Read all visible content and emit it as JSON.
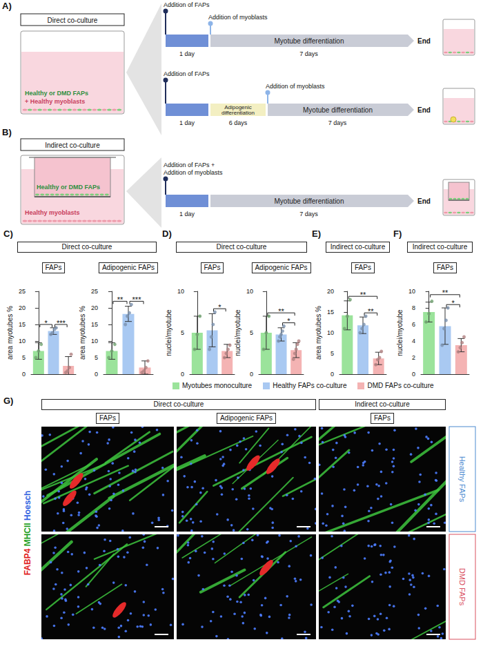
{
  "schematic": {
    "panels": [
      {
        "letter": "A)",
        "title": "Direct co-culture",
        "well_labels": [
          {
            "text": "Healthy or DMD FAPs",
            "color": "#2f8f3f"
          },
          {
            "text": "+ Healthy myoblasts",
            "color": "#c8405e"
          }
        ],
        "timelines": [
          {
            "markers": [
              {
                "texts": [
                  "Addition of FAPs"
                ]
              },
              {
                "texts": [
                  "Addition of myoblasts"
                ]
              }
            ],
            "stages": [
              {
                "duration": "1 day",
                "color": "#6f8fd6"
              },
              {
                "name": "Myotube differentiation",
                "duration": "7 days",
                "color": "#c9ccd6"
              }
            ],
            "end": "End"
          },
          {
            "markers": [
              {
                "texts": [
                  "Addition of FAPs"
                ]
              },
              {
                "texts": [
                  "Addition of myoblasts"
                ]
              }
            ],
            "stages": [
              {
                "duration": "1 day",
                "color": "#6f8fd6"
              },
              {
                "name": "Adipogenic differentiation",
                "duration": "6 days",
                "color": "#f3efc2"
              },
              {
                "name": "Myotube differentiation",
                "duration": "7 days",
                "color": "#c9ccd6"
              }
            ],
            "end": "End"
          }
        ]
      },
      {
        "letter": "B)",
        "title": "Indirect co-culture",
        "well_labels": [
          {
            "text": "Healthy or DMD FAPs",
            "color": "#2f8f3f"
          },
          {
            "text": "Healthy myoblasts",
            "color": "#c8405e"
          }
        ],
        "timelines": [
          {
            "markers": [
              {
                "texts": [
                  "Addition of FAPs +",
                  "Addition of myoblasts"
                ]
              }
            ],
            "stages": [
              {
                "duration": "1 day",
                "color": "#6f8fd6"
              },
              {
                "name": "Myotube differentiation",
                "duration": "7 days",
                "color": "#c9ccd6"
              }
            ],
            "end": "End"
          }
        ]
      }
    ]
  },
  "chart_data": [
    {
      "type": "bar",
      "panel": "C)",
      "group": "Direct co-culture",
      "title": "FAPs",
      "y_label": "area myotubes %",
      "categories": [
        null,
        null,
        null
      ],
      "values": [
        7,
        13,
        2.5
      ],
      "errors": [
        2.5,
        1,
        2.8
      ],
      "points": [
        [
          5,
          7,
          9
        ],
        [
          12,
          12.5,
          13.5,
          14
        ],
        [
          0.5,
          1,
          2,
          6
        ]
      ],
      "colors": [
        "#9be39b",
        "#a9c9f2",
        "#f4b3b3"
      ],
      "ylim": [
        0,
        25
      ],
      "yticks": [
        0,
        5,
        10,
        15,
        20,
        25
      ],
      "grid": false,
      "tick_labels": "y",
      "annotations": [
        {
          "text": "*",
          "from": 0,
          "to": 1
        },
        {
          "text": "***",
          "from": 1,
          "to": 2
        }
      ]
    },
    {
      "type": "bar",
      "panel": "C)",
      "group": "Direct co-culture",
      "title": "Adipogenic FAPs",
      "y_label": "area myotubes %",
      "categories": [
        null,
        null,
        null
      ],
      "values": [
        7,
        18.2,
        2
      ],
      "errors": [
        2.5,
        2.3,
        2
      ],
      "points": [
        [
          5,
          7,
          9
        ],
        [
          15,
          17.5,
          18.5,
          21
        ],
        [
          0.5,
          1,
          2,
          4
        ]
      ],
      "colors": [
        "#9be39b",
        "#a9c9f2",
        "#f4b3b3"
      ],
      "ylim": [
        0,
        25
      ],
      "yticks": [
        0,
        5,
        10,
        15,
        20,
        25
      ],
      "grid": false,
      "tick_labels": "y",
      "annotations": [
        {
          "text": "**",
          "from": 0,
          "to": 1
        },
        {
          "text": "***",
          "from": 1,
          "to": 2
        }
      ]
    },
    {
      "type": "bar",
      "panel": "D)",
      "group": "Direct co-culture",
      "title": "FAPs",
      "y_label": "nuclei/myotube",
      "categories": [
        null,
        null,
        null
      ],
      "values": [
        5,
        5.3,
        2.8
      ],
      "errors": [
        2,
        2,
        0.8
      ],
      "points": [
        [
          3,
          4.8,
          7
        ],
        [
          3,
          4.5,
          6,
          7.5
        ],
        [
          2,
          2.5,
          3,
          3.5
        ]
      ],
      "colors": [
        "#9be39b",
        "#a9c9f2",
        "#f4b3b3"
      ],
      "ylim": [
        0,
        10
      ],
      "yticks": [
        0,
        5,
        10
      ],
      "grid": false,
      "tick_labels": "y",
      "annotations": [
        {
          "text": "*",
          "from": 1,
          "to": 2
        }
      ]
    },
    {
      "type": "bar",
      "panel": "D)",
      "group": "Direct co-culture",
      "title": "Adipogenic FAPs",
      "y_label": "nuclei/myotube",
      "categories": [
        null,
        null,
        null
      ],
      "values": [
        5,
        4.8,
        2.9
      ],
      "errors": [
        2,
        0.8,
        0.9
      ],
      "points": [
        [
          3,
          5,
          7
        ],
        [
          4,
          4.5,
          4.8,
          5.2,
          5.8
        ],
        [
          1.8,
          2.5,
          3,
          3.6,
          4
        ]
      ],
      "colors": [
        "#9be39b",
        "#a9c9f2",
        "#f4b3b3"
      ],
      "ylim": [
        0,
        10
      ],
      "yticks": [
        0,
        5,
        10
      ],
      "grid": false,
      "tick_labels": "y",
      "annotations": [
        {
          "text": "**",
          "from": 0,
          "to": 2
        },
        {
          "text": "*",
          "from": 1,
          "to": 2
        }
      ]
    },
    {
      "type": "bar",
      "panel": "E)",
      "group": "Indirect co-culture",
      "title": "FAPs",
      "y_label": "area myotubes %",
      "categories": [
        null,
        null,
        null
      ],
      "values": [
        14.2,
        11.8,
        3.8
      ],
      "errors": [
        3.5,
        2,
        1.5
      ],
      "points": [
        [
          11,
          14,
          18
        ],
        [
          10,
          11,
          12,
          14
        ],
        [
          2.3,
          3.5,
          4,
          5.5
        ]
      ],
      "colors": [
        "#9be39b",
        "#a9c9f2",
        "#f4b3b3"
      ],
      "ylim": [
        0,
        20
      ],
      "yticks": [
        0,
        5,
        10,
        15,
        20
      ],
      "grid": false,
      "tick_labels": "y",
      "annotations": [
        {
          "text": "**",
          "from": 0,
          "to": 2
        },
        {
          "text": "**",
          "from": 1,
          "to": 2
        }
      ]
    },
    {
      "type": "bar",
      "panel": "F)",
      "group": "Indirect co-culture",
      "title": "FAPs",
      "y_label": "nuclei/myotube",
      "categories": [
        null,
        null,
        null
      ],
      "values": [
        7.5,
        5.8,
        3.5
      ],
      "errors": [
        1.2,
        2.2,
        0.8
      ],
      "points": [
        [
          6.3,
          7.3,
          8.8
        ],
        [
          3.5,
          5.5,
          6.5,
          8
        ],
        [
          2.7,
          3.2,
          3.8,
          4.5
        ]
      ],
      "colors": [
        "#9be39b",
        "#a9c9f2",
        "#f4b3b3"
      ],
      "ylim": [
        0,
        10
      ],
      "yticks": [
        0,
        2,
        4,
        6,
        8,
        10
      ],
      "grid": false,
      "tick_labels": "y",
      "annotations": [
        {
          "text": "**",
          "from": 0,
          "to": 2
        },
        {
          "text": "*",
          "from": 1,
          "to": 2
        }
      ]
    }
  ],
  "legend_entries": [
    {
      "name": "Myotubes monoculture",
      "color": "#9be39b"
    },
    {
      "name": "Healthy FAPs co-culture",
      "color": "#a9c9f2"
    },
    {
      "name": "DMD FAPs co-culture",
      "color": "#f4b3b3"
    }
  ],
  "images": {
    "letter": "G)",
    "stains": [
      {
        "text": "FABP4",
        "color": "#e02020"
      },
      {
        "text": "MHCII",
        "color": "#1fa01f"
      },
      {
        "text": "Hoesch",
        "color": "#2f5fe0"
      }
    ],
    "groups": [
      {
        "title": "Direct co-culture",
        "columns": [
          "FAPs",
          "Adipogenic FAPs"
        ]
      },
      {
        "title": "Indirect co-culture",
        "columns": [
          "FAPs"
        ]
      }
    ],
    "rows": [
      {
        "label": "Healthy FAPs",
        "color": "#4a8ad0"
      },
      {
        "label": "DMD FAPs",
        "color": "#d9505f"
      }
    ]
  }
}
